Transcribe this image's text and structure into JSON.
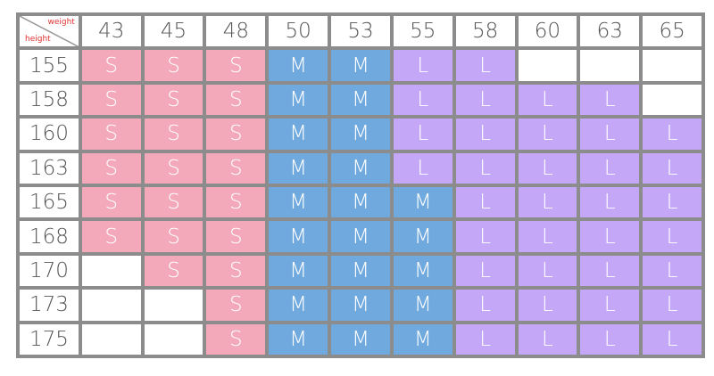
{
  "corner": {
    "top_label": "weight",
    "bottom_label": "height"
  },
  "weights": [
    "43",
    "45",
    "48",
    "50",
    "53",
    "55",
    "58",
    "60",
    "63",
    "65"
  ],
  "rows": [
    {
      "height": "155",
      "sizes": [
        "S",
        "S",
        "S",
        "M",
        "M",
        "L",
        "L",
        null,
        null,
        null
      ]
    },
    {
      "height": "158",
      "sizes": [
        "S",
        "S",
        "S",
        "M",
        "M",
        "L",
        "L",
        "L",
        "L",
        null
      ]
    },
    {
      "height": "160",
      "sizes": [
        "S",
        "S",
        "S",
        "M",
        "M",
        "L",
        "L",
        "L",
        "L",
        "L"
      ]
    },
    {
      "height": "163",
      "sizes": [
        "S",
        "S",
        "S",
        "M",
        "M",
        "L",
        "L",
        "L",
        "L",
        "L"
      ]
    },
    {
      "height": "165",
      "sizes": [
        "S",
        "S",
        "S",
        "M",
        "M",
        "M",
        "L",
        "L",
        "L",
        "L"
      ]
    },
    {
      "height": "168",
      "sizes": [
        "S",
        "S",
        "S",
        "M",
        "M",
        "M",
        "L",
        "L",
        "L",
        "L"
      ]
    },
    {
      "height": "170",
      "sizes": [
        null,
        "S",
        "S",
        "M",
        "M",
        "M",
        "L",
        "L",
        "L",
        "L"
      ]
    },
    {
      "height": "173",
      "sizes": [
        null,
        null,
        "S",
        "M",
        "M",
        "M",
        "L",
        "L",
        "L",
        "L"
      ]
    },
    {
      "height": "175",
      "sizes": [
        null,
        null,
        "S",
        "M",
        "M",
        "M",
        "L",
        "L",
        "L",
        "L"
      ]
    }
  ],
  "size_colors": {
    "S": "#f3a9b9",
    "M": "#6fa9de",
    "L": "#c4a7f6"
  }
}
